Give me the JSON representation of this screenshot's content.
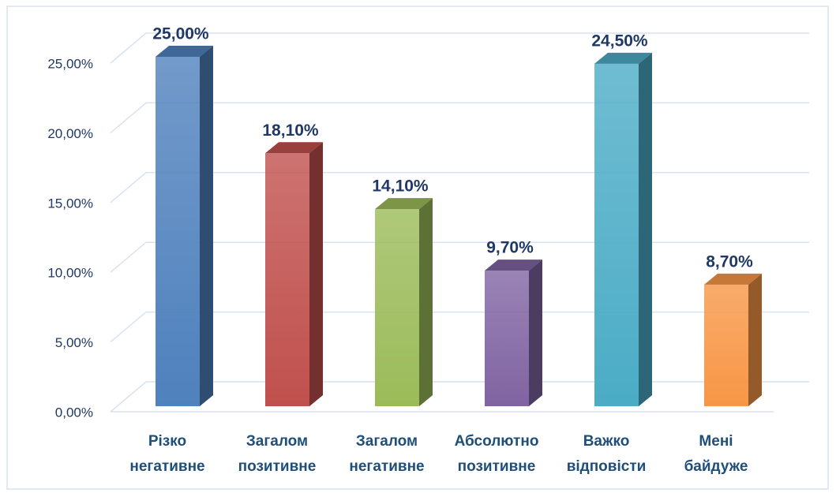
{
  "chart_data": {
    "type": "bar3d",
    "categories": [
      [
        "Різко",
        "негативне"
      ],
      [
        "Загалом",
        "позитивне"
      ],
      [
        "Загалом",
        "негативне"
      ],
      [
        "Абсолютно",
        "позитивне"
      ],
      [
        "Важко",
        "відповісти"
      ],
      [
        "Мені",
        "байдуже"
      ]
    ],
    "values": [
      25,
      18.1,
      14.1,
      9.7,
      24.5,
      8.7
    ],
    "value_labels": [
      "25,00%",
      "18,10%",
      "14,10%",
      "9,70%",
      "24,50%",
      "8,70%"
    ],
    "colors": [
      "#4f81bd",
      "#c0504d",
      "#9bbb59",
      "#8064a2",
      "#4bacc6",
      "#f79646"
    ],
    "ylim": [
      0,
      25
    ],
    "yticks": [
      {
        "value": 0,
        "label": "0,00%"
      },
      {
        "value": 5,
        "label": "5,00%"
      },
      {
        "value": 10,
        "label": "10,00%"
      },
      {
        "value": 15,
        "label": "15,00%"
      },
      {
        "value": 20,
        "label": "20,00%"
      },
      {
        "value": 25,
        "label": "25,00%"
      }
    ],
    "grid": true
  }
}
